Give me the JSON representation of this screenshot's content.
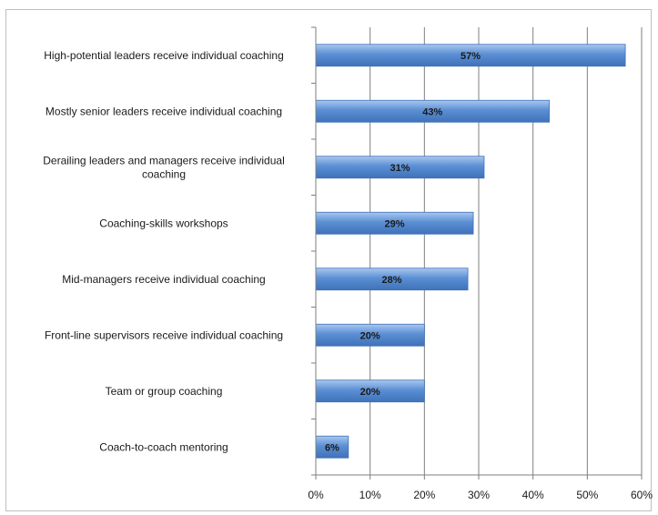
{
  "chart_data": {
    "type": "bar",
    "orientation": "horizontal",
    "categories": [
      "High-potential leaders receive individual coaching",
      "Mostly senior leaders receive individual coaching",
      "Derailing leaders and managers receive individual coaching",
      "Coaching-skills workshops",
      "Mid-managers receive individual coaching",
      "Front-line supervisors receive individual coaching",
      "Team or group coaching",
      "Coach-to-coach mentoring"
    ],
    "category_label_lines": [
      [
        "High-potential leaders receive individual coaching"
      ],
      [
        "Mostly senior leaders receive individual coaching"
      ],
      [
        "Derailing leaders and managers receive individual",
        "coaching"
      ],
      [
        "Coaching-skills workshops"
      ],
      [
        "Mid-managers receive individual coaching"
      ],
      [
        "Front-line supervisors receive individual coaching"
      ],
      [
        "Team or group coaching"
      ],
      [
        "Coach-to-coach mentoring"
      ]
    ],
    "values": [
      57,
      43,
      31,
      29,
      28,
      20,
      20,
      6
    ],
    "data_labels": [
      "57%",
      "43%",
      "31%",
      "29%",
      "28%",
      "20%",
      "20%",
      "6%"
    ],
    "xlim": [
      0,
      60
    ],
    "x_ticks": [
      0,
      10,
      20,
      30,
      40,
      50,
      60
    ],
    "x_tick_labels": [
      "0%",
      "10%",
      "20%",
      "30%",
      "40%",
      "50%",
      "60%"
    ],
    "grid": true,
    "legend": "none",
    "bar_color": "#5b8fd4",
    "bar_color_light": "#a9c8ef",
    "bar_color_dark": "#3f72b8",
    "title": "",
    "xlabel": "",
    "ylabel": ""
  }
}
